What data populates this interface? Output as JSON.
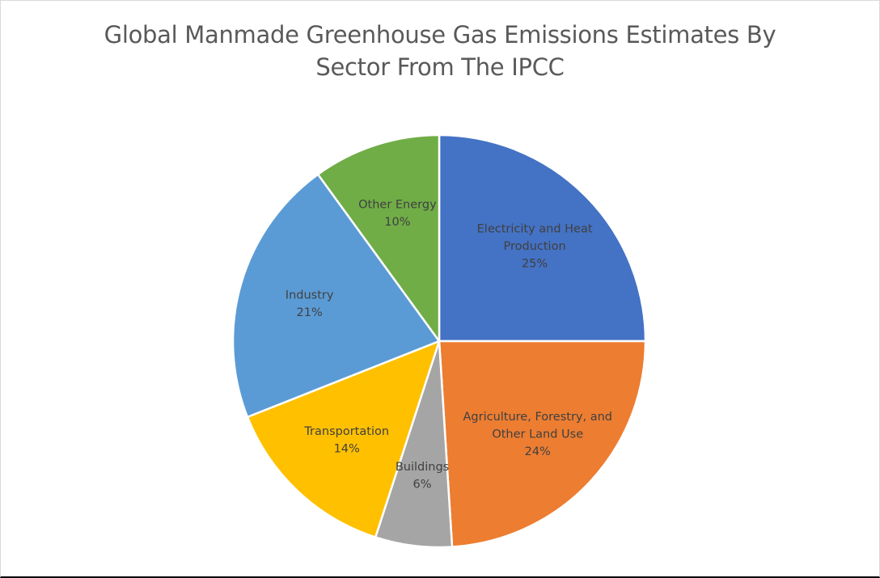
{
  "chart_data": {
    "type": "pie",
    "title_lines": [
      "Global Manmade Greenhouse Gas Emissions Estimates By",
      "Sector From The IPCC"
    ],
    "slices": [
      {
        "label_lines": [
          "Electricity and Heat",
          "Production"
        ],
        "value": 25,
        "display": "25%",
        "color": "#4472C4"
      },
      {
        "label_lines": [
          "Agriculture, Forestry, and",
          "Other Land Use"
        ],
        "value": 24,
        "display": "24%",
        "color": "#ED7D31"
      },
      {
        "label_lines": [
          "Buildings"
        ],
        "value": 6,
        "display": "6%",
        "color": "#A5A5A5"
      },
      {
        "label_lines": [
          "Transportation"
        ],
        "value": 14,
        "display": "14%",
        "color": "#FFC000"
      },
      {
        "label_lines": [
          "Industry"
        ],
        "value": 21,
        "display": "21%",
        "color": "#5B9BD5"
      },
      {
        "label_lines": [
          "Other Energy"
        ],
        "value": 10,
        "display": "10%",
        "color": "#70AD47"
      }
    ],
    "start": "12 o'clock",
    "direction": "clockwise",
    "legend": "none",
    "data_labels": "inside"
  }
}
